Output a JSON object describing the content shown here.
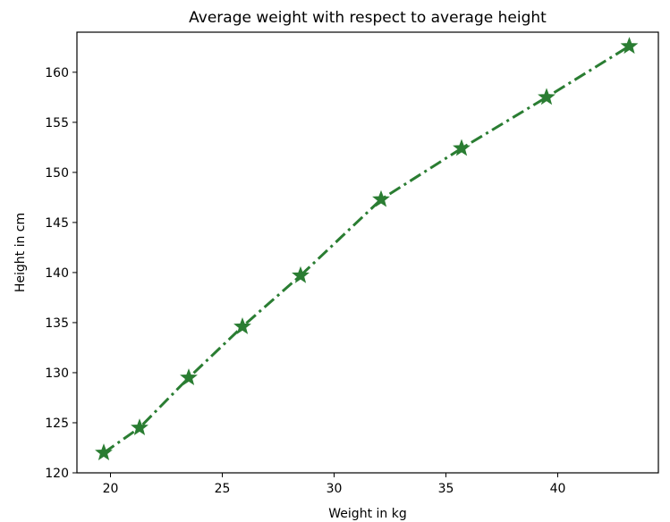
{
  "chart_data": {
    "type": "line",
    "title": "Average weight with respect to average height",
    "xlabel": "Weight in kg",
    "ylabel": "Height in cm",
    "xlim": [
      18.5,
      44.5
    ],
    "ylim": [
      120,
      164
    ],
    "x_ticks": [
      20,
      25,
      30,
      35,
      40
    ],
    "y_ticks": [
      120,
      125,
      130,
      135,
      140,
      145,
      150,
      155,
      160
    ],
    "grid": false,
    "series": [
      {
        "color": "#2a7d32",
        "line_style": "dash-dot",
        "marker": "star",
        "x": [
          19.7,
          21.3,
          23.5,
          25.9,
          28.5,
          32.1,
          35.7,
          39.5,
          43.2
        ],
        "y": [
          122.0,
          124.5,
          129.5,
          134.6,
          139.7,
          147.3,
          152.4,
          157.5,
          162.6
        ]
      }
    ]
  }
}
